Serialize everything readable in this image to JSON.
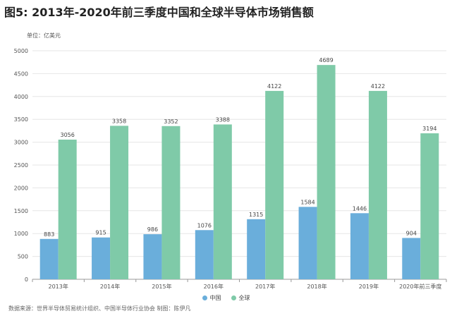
{
  "title": "图5: 2013年-2020年前三季度中国和全球半导体市场销售额",
  "unit_label": "单位：亿美元",
  "source": "数据来源：世界半导体贸易统计组织、中国半导体行业协会 制图：陈伊凡",
  "colors": {
    "china": "#6aaedb",
    "global": "#7fcaa8",
    "grid": "#e6e6e6",
    "axis": "#999999"
  },
  "chart_data": {
    "type": "bar",
    "categories": [
      "2013年",
      "2014年",
      "2015年",
      "2016年",
      "2017年",
      "2018年",
      "2019年",
      "2020年前三季度"
    ],
    "series": [
      {
        "name": "中国",
        "values": [
          883,
          915,
          986,
          1076,
          1315,
          1584,
          1446,
          904
        ]
      },
      {
        "name": "全球",
        "values": [
          3056,
          3358,
          3352,
          3388,
          4122,
          4689,
          4122,
          3194
        ]
      }
    ],
    "yticks": [
      0,
      500,
      1000,
      1500,
      2000,
      2500,
      3000,
      3500,
      4000,
      4500,
      5000
    ],
    "ylim": [
      0,
      5000
    ],
    "grid": true,
    "legend_position": "bottom-center"
  }
}
